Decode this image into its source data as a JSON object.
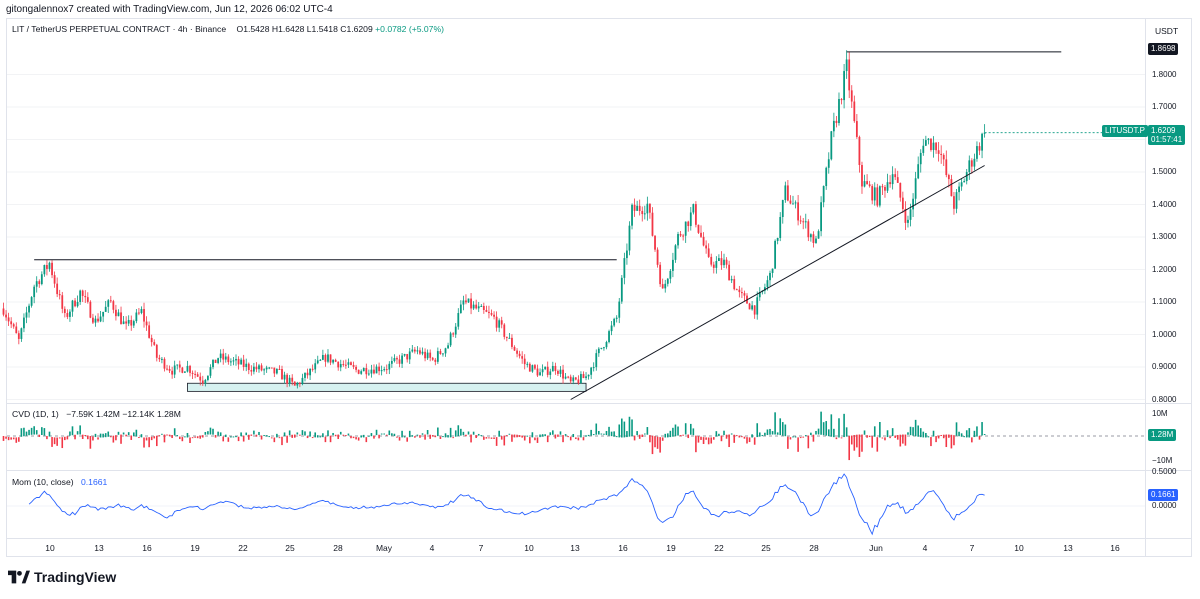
{
  "header": {
    "attribution": "gitongalennox7 created with TradingView.com, Jun 12, 2026 06:02 UTC-4"
  },
  "symbol_legend": {
    "title": "LIT / TetherUS PERPETUAL CONTRACT · 4h · Binance",
    "open": "O1.5428",
    "high": "H1.6428",
    "low": "L1.5418",
    "close": "C1.6209",
    "change": "+0.0782 (+5.07%)"
  },
  "currency": "USDT",
  "cvd_legend": {
    "label": "CVD (1D, 1)",
    "values": "−7.59K  1.42M  −12.14K  1.28M"
  },
  "mom_legend": {
    "label": "Mom (10, close)",
    "value": "0.1661"
  },
  "tags": {
    "high_level": "1.8698",
    "symbol": "LITUSDT.P",
    "last_price": "1.6209",
    "countdown": "01:57:41",
    "cvd_last": "1.28M",
    "mom_last": "0.1661"
  },
  "price_axis": [
    "1.8000",
    "1.7000",
    "1.6000",
    "1.5000",
    "1.4000",
    "1.3000",
    "1.2000",
    "1.1000",
    "1.0000",
    "0.9000",
    "0.8000"
  ],
  "cvd_axis": [
    "10M",
    "−10M"
  ],
  "mom_axis": [
    "0.5000",
    "0.0000"
  ],
  "x_axis": [
    "10",
    "13",
    "16",
    "19",
    "22",
    "25",
    "28",
    "May",
    "4",
    "7",
    "10",
    "13",
    "16",
    "19",
    "22",
    "25",
    "28",
    "Jun",
    "4",
    "7",
    "10",
    "13",
    "16"
  ],
  "brand": "TradingView",
  "colors": {
    "up": "#089981",
    "down": "#f23645",
    "mom": "#2962ff",
    "line": "#131722",
    "zone": "#d6f1f0"
  },
  "chart_data": {
    "type": "candlestick",
    "title": "LIT / TetherUS PERPETUAL CONTRACT · 4h · Binance",
    "ylim": [
      0.79,
      1.9
    ],
    "x_range": [
      "2026-04-09",
      "2026-06-17"
    ],
    "close_path": [
      {
        "date": "2026-04-09",
        "close": 1.08
      },
      {
        "date": "2026-04-10",
        "close": 0.98
      },
      {
        "date": "2026-04-11",
        "close": 1.15
      },
      {
        "date": "2026-04-12",
        "close": 1.22
      },
      {
        "date": "2026-04-13",
        "close": 1.05
      },
      {
        "date": "2026-04-14",
        "close": 1.13
      },
      {
        "date": "2026-04-15",
        "close": 1.04
      },
      {
        "date": "2026-04-16",
        "close": 1.1
      },
      {
        "date": "2026-04-17",
        "close": 1.02
      },
      {
        "date": "2026-04-18",
        "close": 1.07
      },
      {
        "date": "2026-04-19",
        "close": 0.93
      },
      {
        "date": "2026-04-20",
        "close": 0.89
      },
      {
        "date": "2026-04-21",
        "close": 0.9
      },
      {
        "date": "2026-04-22",
        "close": 0.86
      },
      {
        "date": "2026-04-23",
        "close": 0.93
      },
      {
        "date": "2026-04-25",
        "close": 0.9
      },
      {
        "date": "2026-04-27",
        "close": 0.88
      },
      {
        "date": "2026-04-28",
        "close": 0.84
      },
      {
        "date": "2026-04-30",
        "close": 0.93
      },
      {
        "date": "2026-05-02",
        "close": 0.89
      },
      {
        "date": "2026-05-04",
        "close": 0.9
      },
      {
        "date": "2026-05-06",
        "close": 0.95
      },
      {
        "date": "2026-05-07",
        "close": 0.92
      },
      {
        "date": "2026-05-08",
        "close": 0.97
      },
      {
        "date": "2026-05-09",
        "close": 1.1
      },
      {
        "date": "2026-05-11",
        "close": 1.05
      },
      {
        "date": "2026-05-12",
        "close": 0.98
      },
      {
        "date": "2026-05-13",
        "close": 0.91
      },
      {
        "date": "2026-05-14",
        "close": 0.88
      },
      {
        "date": "2026-05-15",
        "close": 0.9
      },
      {
        "date": "2026-05-16",
        "close": 0.85
      },
      {
        "date": "2026-05-17",
        "close": 0.87
      },
      {
        "date": "2026-05-18",
        "close": 0.96
      },
      {
        "date": "2026-05-19",
        "close": 1.05
      },
      {
        "date": "2026-05-20",
        "close": 1.38
      },
      {
        "date": "2026-05-21",
        "close": 1.4
      },
      {
        "date": "2026-05-22",
        "close": 1.13
      },
      {
        "date": "2026-05-23",
        "close": 1.3
      },
      {
        "date": "2026-05-24",
        "close": 1.38
      },
      {
        "date": "2026-05-25",
        "close": 1.22
      },
      {
        "date": "2026-05-26",
        "close": 1.22
      },
      {
        "date": "2026-05-27",
        "close": 1.12
      },
      {
        "date": "2026-05-28",
        "close": 1.08
      },
      {
        "date": "2026-05-29",
        "close": 1.18
      },
      {
        "date": "2026-05-30",
        "close": 1.44
      },
      {
        "date": "2026-05-31",
        "close": 1.36
      },
      {
        "date": "2026-06-01",
        "close": 1.28
      },
      {
        "date": "2026-06-02",
        "close": 1.6
      },
      {
        "date": "2026-06-03",
        "close": 1.82
      },
      {
        "date": "2026-06-04",
        "close": 1.47
      },
      {
        "date": "2026-06-05",
        "close": 1.42
      },
      {
        "date": "2026-06-06",
        "close": 1.5
      },
      {
        "date": "2026-06-07",
        "close": 1.34
      },
      {
        "date": "2026-06-08",
        "close": 1.6
      },
      {
        "date": "2026-06-09",
        "close": 1.58
      },
      {
        "date": "2026-06-10",
        "close": 1.4
      },
      {
        "date": "2026-06-11",
        "close": 1.52
      },
      {
        "date": "2026-06-12",
        "close": 1.62
      }
    ],
    "drawings": {
      "resistance_line": {
        "price": 1.23,
        "from": "2026-04-11",
        "to": "2026-05-19"
      },
      "high_line": {
        "price": 1.8698,
        "from": "2026-06-03",
        "to": "2026-06-17"
      },
      "support_zone": {
        "low": 0.825,
        "high": 0.85,
        "from": "2026-04-21",
        "to": "2026-05-17"
      },
      "trendline": [
        {
          "date": "2026-05-16",
          "price": 0.8
        },
        {
          "date": "2026-06-12",
          "price": 1.52
        }
      ]
    }
  }
}
